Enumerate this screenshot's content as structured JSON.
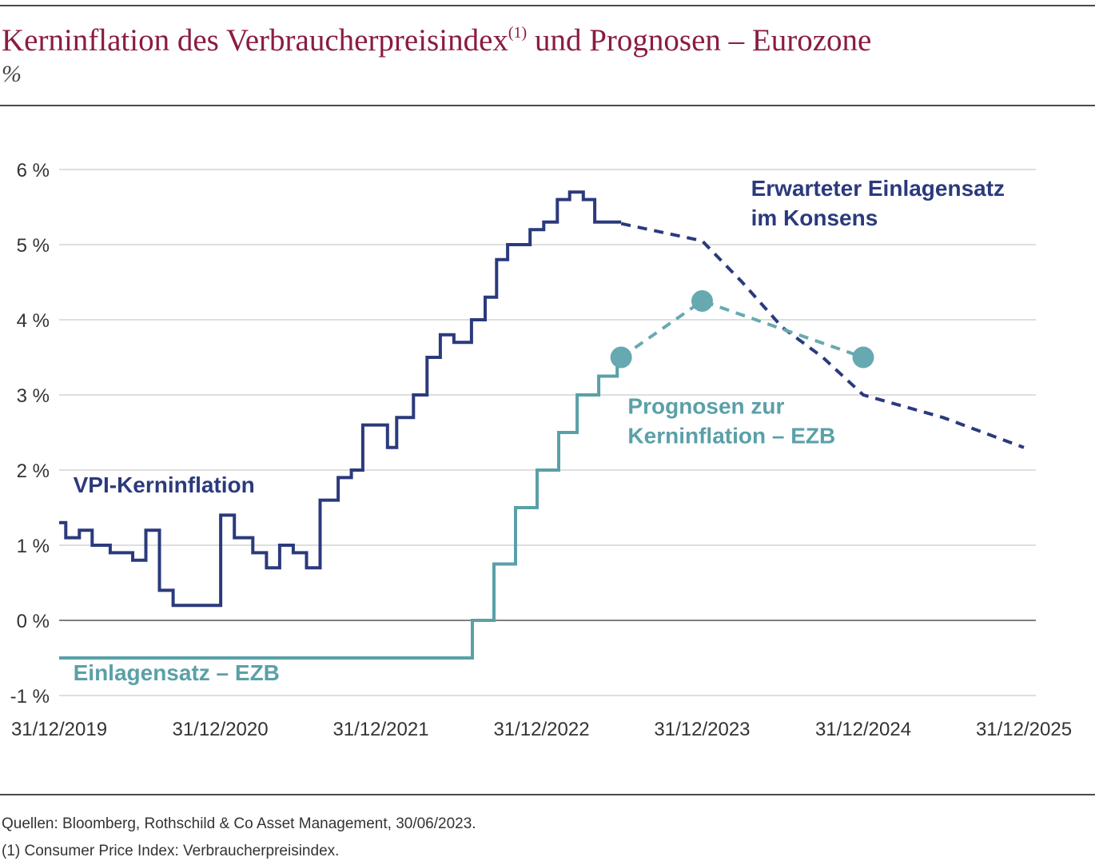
{
  "header": {
    "title_main": "Kerninflation des Verbraucherpreisindex",
    "title_sup": "(1)",
    "title_rest": " und Prognosen – Eurozone",
    "unit": "%"
  },
  "footer": {
    "source": "Quellen: Bloomberg, Rothschild & Co Asset Management, 30/06/2023.",
    "note": "(1) Consumer Price Index: Verbraucherpreisindex."
  },
  "chart_data": {
    "type": "line",
    "title": "Kerninflation des Verbraucherpreisindex(1) und Prognosen – Eurozone",
    "ylabel": "%",
    "xlabel": "",
    "ylim": [
      -1,
      6
    ],
    "xlim": [
      "2019-12-31",
      "2025-12-31"
    ],
    "y_ticks": [
      -1,
      0,
      1,
      2,
      3,
      4,
      5,
      6
    ],
    "y_tick_labels": [
      "-1 %",
      "0 %",
      "1 %",
      "2 %",
      "3 %",
      "4 %",
      "5 %",
      "6 %"
    ],
    "x_ticks": [
      "2019-12-31",
      "2020-12-31",
      "2021-12-31",
      "2022-12-31",
      "2023-12-31",
      "2024-12-31",
      "2025-12-31"
    ],
    "x_tick_labels": [
      "31/12/2019",
      "31/12/2020",
      "31/12/2021",
      "31/12/2022",
      "31/12/2023",
      "31/12/2024",
      "31/12/2025"
    ],
    "grid": true,
    "colors": {
      "navy": "#2b3a7c",
      "teal": "#5aa0a8",
      "dot": "#67a9b1",
      "grid": "#bdbdbd",
      "zero": "#555555"
    },
    "series": [
      {
        "name": "VPI-Kerninflation",
        "style": "step-solid",
        "color": "#2b3a7c",
        "points": [
          [
            "2019-12-31",
            1.3
          ],
          [
            "2020-01-15",
            1.1
          ],
          [
            "2020-02-15",
            1.2
          ],
          [
            "2020-03-15",
            1.0
          ],
          [
            "2020-04-25",
            0.9
          ],
          [
            "2020-06-15",
            0.8
          ],
          [
            "2020-07-15",
            1.2
          ],
          [
            "2020-08-15",
            0.4
          ],
          [
            "2020-09-15",
            0.2
          ],
          [
            "2021-01-01",
            1.4
          ],
          [
            "2021-02-01",
            1.1
          ],
          [
            "2021-03-15",
            0.9
          ],
          [
            "2021-04-15",
            0.7
          ],
          [
            "2021-05-15",
            1.0
          ],
          [
            "2021-06-15",
            0.9
          ],
          [
            "2021-07-15",
            0.7
          ],
          [
            "2021-08-15",
            1.6
          ],
          [
            "2021-09-25",
            1.9
          ],
          [
            "2021-10-25",
            2.0
          ],
          [
            "2021-11-20",
            2.6
          ],
          [
            "2022-01-15",
            2.3
          ],
          [
            "2022-02-05",
            2.7
          ],
          [
            "2022-03-15",
            3.0
          ],
          [
            "2022-04-15",
            3.5
          ],
          [
            "2022-05-15",
            3.8
          ],
          [
            "2022-06-15",
            3.7
          ],
          [
            "2022-07-25",
            4.0
          ],
          [
            "2022-08-25",
            4.3
          ],
          [
            "2022-09-20",
            4.8
          ],
          [
            "2022-10-15",
            5.0
          ],
          [
            "2022-12-05",
            5.2
          ],
          [
            "2023-01-05",
            5.3
          ],
          [
            "2023-02-05",
            5.6
          ],
          [
            "2023-03-05",
            5.7
          ],
          [
            "2023-04-05",
            5.6
          ],
          [
            "2023-05-01",
            5.3
          ],
          [
            "2023-06-30",
            5.3
          ]
        ]
      },
      {
        "name": "Einlagensatz – EZB",
        "style": "step-solid",
        "color": "#5aa0a8",
        "points": [
          [
            "2019-12-31",
            -0.5
          ],
          [
            "2022-07-27",
            0.0
          ],
          [
            "2022-09-14",
            0.75
          ],
          [
            "2022-11-02",
            1.5
          ],
          [
            "2022-12-21",
            2.0
          ],
          [
            "2023-02-08",
            2.5
          ],
          [
            "2023-03-22",
            3.0
          ],
          [
            "2023-05-10",
            3.25
          ],
          [
            "2023-06-21",
            3.5
          ]
        ]
      },
      {
        "name": "Erwarteter Einlagensatz im Konsens",
        "style": "dashed",
        "color": "#2b3a7c",
        "points": [
          [
            "2023-06-30",
            5.28
          ],
          [
            "2023-12-31",
            5.05
          ],
          [
            "2024-03-31",
            4.5
          ],
          [
            "2024-06-30",
            3.9
          ],
          [
            "2024-09-30",
            3.5
          ],
          [
            "2024-12-31",
            3.0
          ],
          [
            "2025-06-30",
            2.7
          ],
          [
            "2025-12-31",
            2.3
          ]
        ]
      },
      {
        "name": "Prognosen zur Kerninflation – EZB",
        "style": "dashed-dots",
        "color": "#67a9b1",
        "points": [
          [
            "2023-06-30",
            3.5
          ],
          [
            "2023-12-31",
            4.25
          ],
          [
            "2024-12-31",
            3.5
          ]
        ]
      }
    ],
    "annotations": [
      {
        "series": "VPI-Kerninflation",
        "lines": [
          "VPI-Kerninflation"
        ],
        "color": "#2b3a7c",
        "anchor": [
          "2020-02-01",
          1.7
        ]
      },
      {
        "series": "Einlagensatz – EZB",
        "lines": [
          "Einlagensatz – EZB"
        ],
        "color": "#5aa0a8",
        "anchor": [
          "2020-02-01",
          -0.8
        ]
      },
      {
        "series": "Erwarteter Einlagensatz im Konsens",
        "lines": [
          "Erwarteter Einlagensatz",
          "im Konsens"
        ],
        "color": "#2b3a7c",
        "anchor": [
          "2024-04-20",
          5.65
        ]
      },
      {
        "series": "Prognosen zur Kerninflation – EZB",
        "lines": [
          "Prognosen zur",
          "Kerninflation – EZB"
        ],
        "color": "#5aa0a8",
        "anchor": [
          "2023-07-15",
          2.75
        ]
      }
    ]
  }
}
